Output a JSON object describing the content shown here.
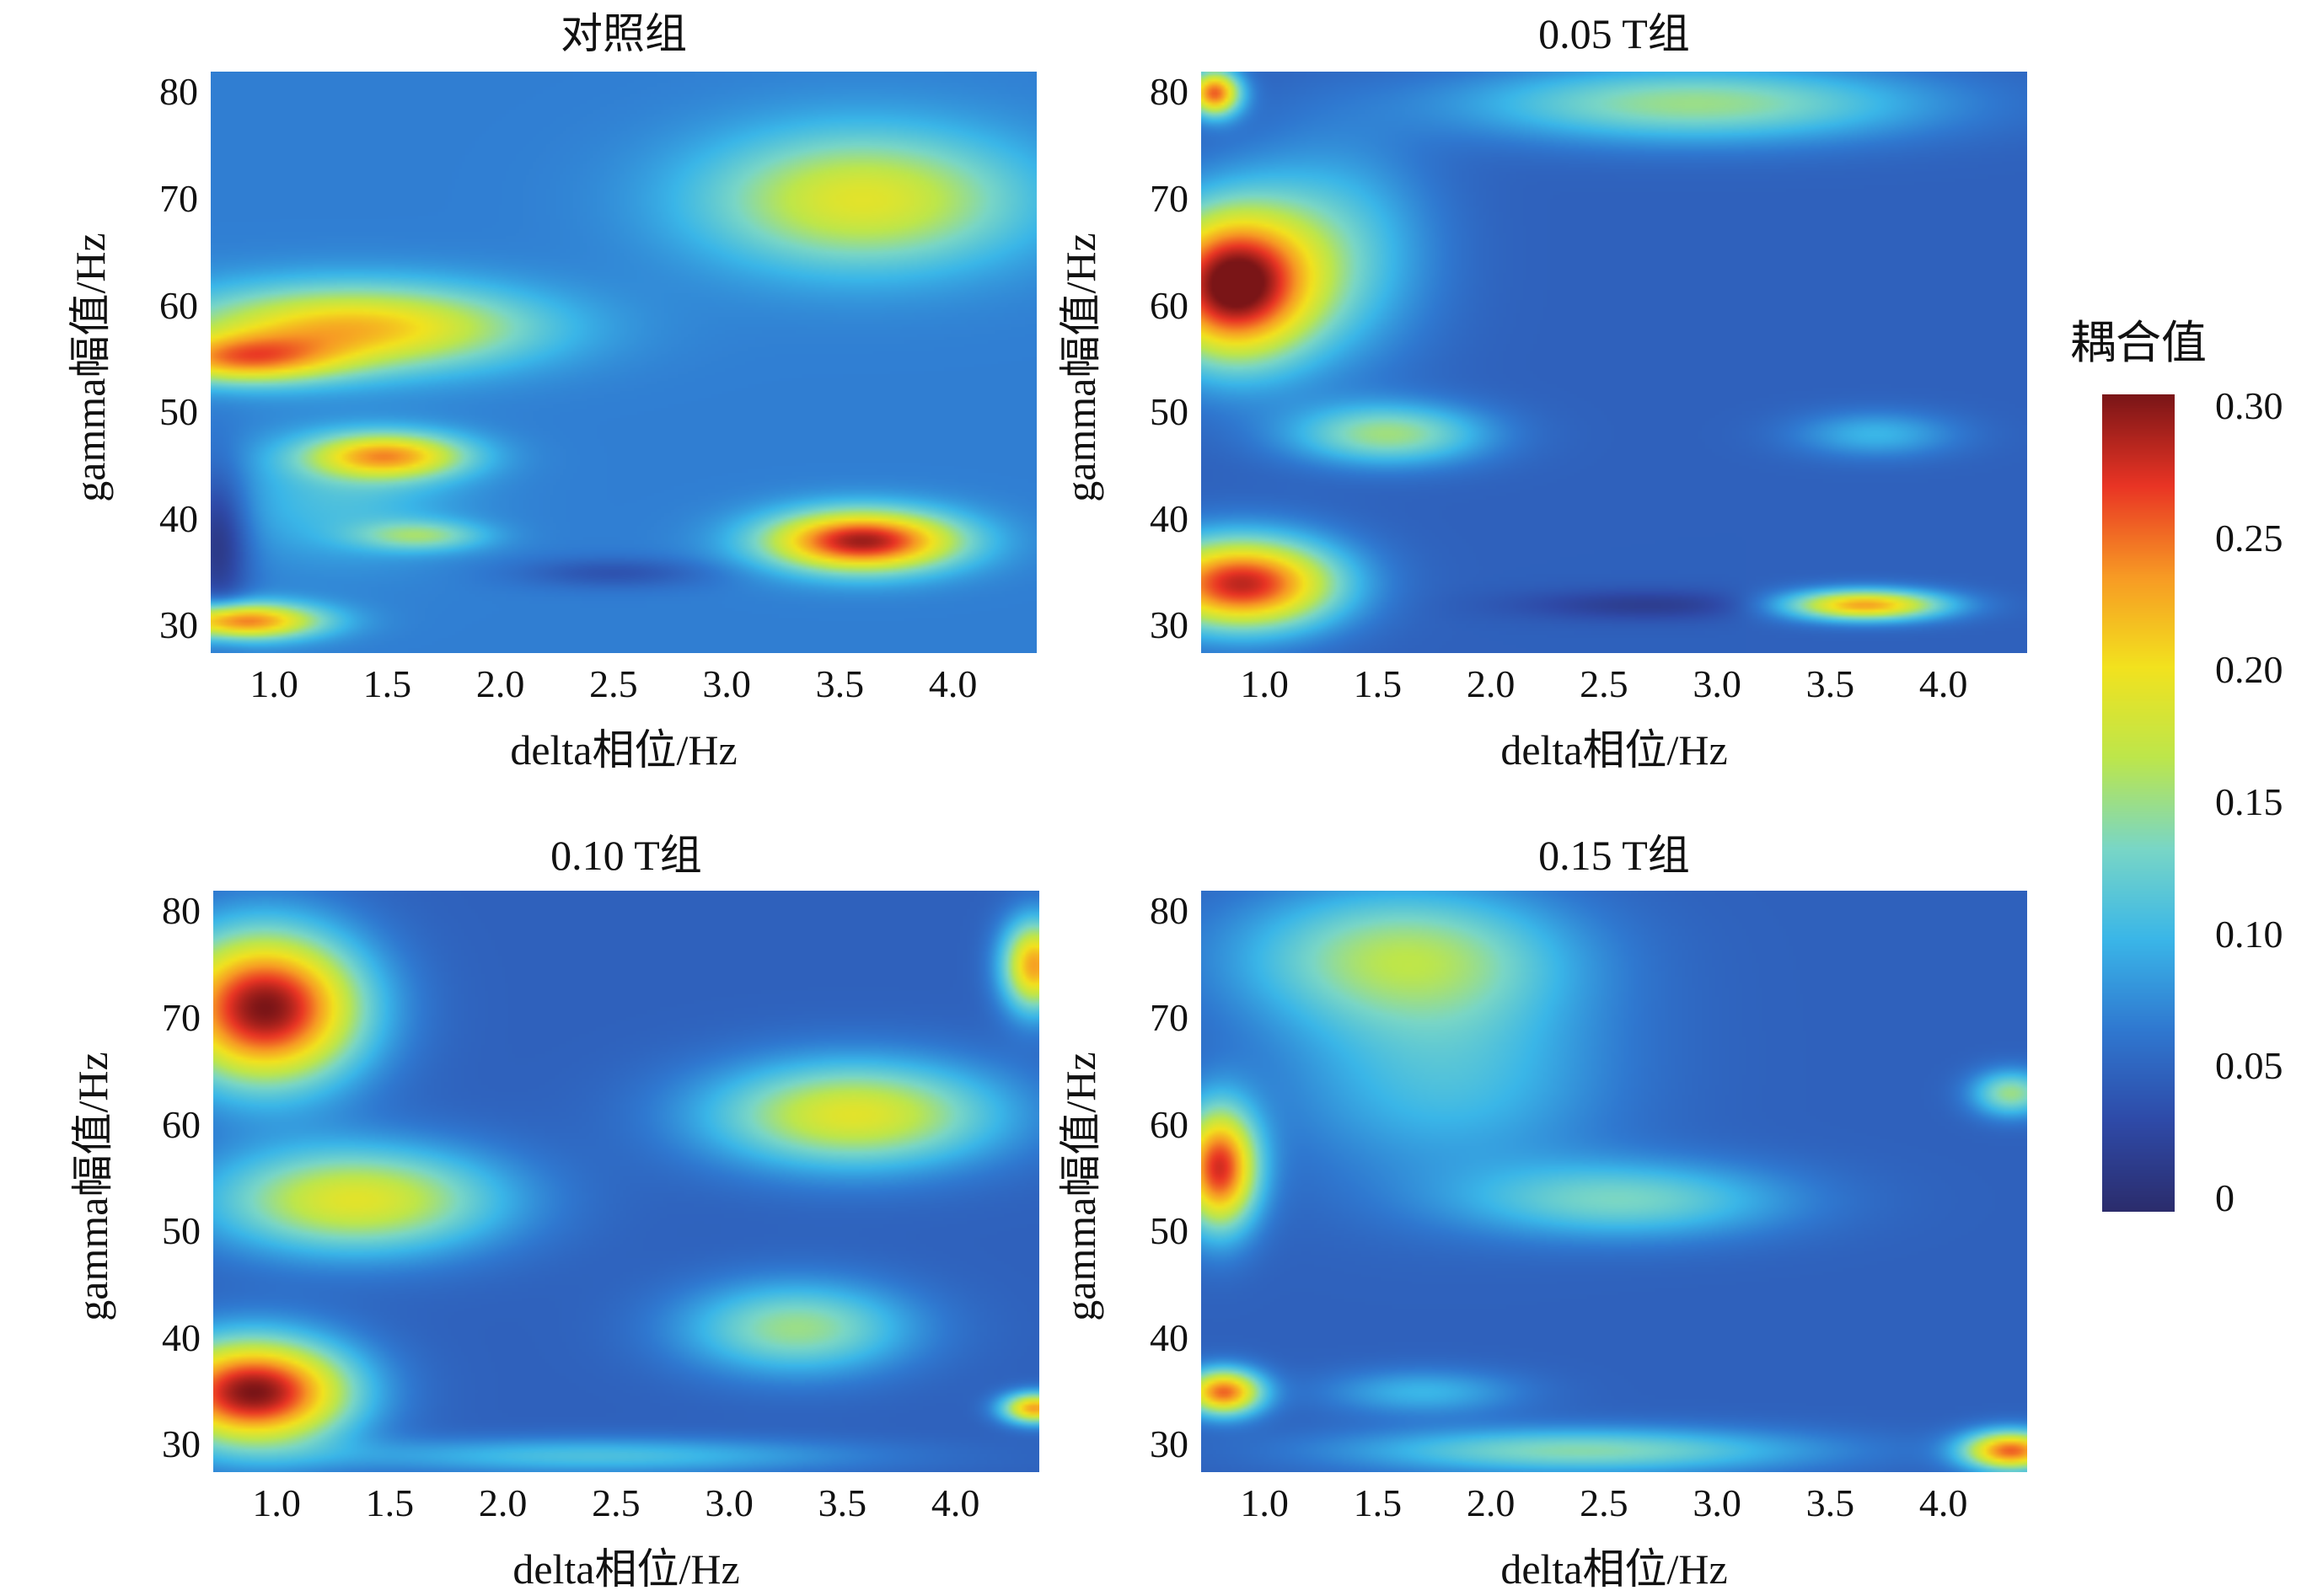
{
  "chart_data": [
    {
      "type": "heatmap",
      "title": "对照组",
      "xlabel": "delta相位/Hz",
      "ylabel": "gamma幅值/Hz",
      "xlim": [
        0.72,
        4.37
      ],
      "ylim": [
        27.5,
        82
      ],
      "xticks": [
        1.0,
        1.5,
        2.0,
        2.5,
        3.0,
        3.5,
        4.0
      ],
      "xtick_labels": [
        "1.0",
        "1.5",
        "2.0",
        "2.5",
        "3.0",
        "3.5",
        "4.0"
      ],
      "yticks": [
        30,
        40,
        50,
        60,
        70,
        80
      ],
      "ytick_labels": [
        "30",
        "40",
        "50",
        "60",
        "70",
        "80"
      ],
      "base_value": 0.07,
      "blobs": [
        {
          "x": 1.35,
          "y": 58,
          "sx": 0.55,
          "sy": 2.8,
          "v": 0.15
        },
        {
          "x": 0.85,
          "y": 55,
          "sx": 0.3,
          "sy": 1.6,
          "v": 0.13
        },
        {
          "x": 1.5,
          "y": 46,
          "sx": 0.25,
          "sy": 1.5,
          "v": 0.15
        },
        {
          "x": 1.65,
          "y": 38.5,
          "sx": 0.2,
          "sy": 1.0,
          "v": 0.07
        },
        {
          "x": 3.6,
          "y": 38,
          "sx": 0.3,
          "sy": 2.0,
          "v": 0.22
        },
        {
          "x": 3.6,
          "y": 70,
          "sx": 0.5,
          "sy": 4.5,
          "v": 0.12
        },
        {
          "x": 0.85,
          "y": 30.5,
          "sx": 0.25,
          "sy": 1.2,
          "v": 0.18
        },
        {
          "x": 1.3,
          "y": 42,
          "sx": 0.35,
          "sy": 4.0,
          "v": 0.04
        },
        {
          "x": 0.75,
          "y": 38,
          "sx": 0.1,
          "sy": 5.0,
          "v": -0.06
        },
        {
          "x": 2.5,
          "y": 35,
          "sx": 0.3,
          "sy": 1.0,
          "v": -0.03
        }
      ],
      "colorbar_ticks": []
    },
    {
      "type": "heatmap",
      "title": "0.05 T组",
      "xlabel": "delta相位/Hz",
      "ylabel": "gamma幅值/Hz",
      "xlim": [
        0.72,
        4.37
      ],
      "ylim": [
        27.5,
        82
      ],
      "xticks": [
        1.0,
        1.5,
        2.0,
        2.5,
        3.0,
        3.5,
        4.0
      ],
      "xtick_labels": [
        "1.0",
        "1.5",
        "2.0",
        "2.5",
        "3.0",
        "3.5",
        "4.0"
      ],
      "yticks": [
        30,
        40,
        50,
        60,
        70,
        80
      ],
      "ytick_labels": [
        "30",
        "40",
        "50",
        "60",
        "70",
        "80"
      ],
      "base_value": 0.05,
      "blobs": [
        {
          "x": 0.85,
          "y": 62,
          "sx": 0.25,
          "sy": 5.0,
          "v": 0.25
        },
        {
          "x": 0.9,
          "y": 34,
          "sx": 0.3,
          "sy": 3.0,
          "v": 0.23
        },
        {
          "x": 0.78,
          "y": 80,
          "sx": 0.08,
          "sy": 1.5,
          "v": 0.2
        },
        {
          "x": 1.55,
          "y": 48,
          "sx": 0.3,
          "sy": 2.0,
          "v": 0.1
        },
        {
          "x": 3.65,
          "y": 32,
          "sx": 0.25,
          "sy": 1.0,
          "v": 0.18
        },
        {
          "x": 2.9,
          "y": 79,
          "sx": 0.7,
          "sy": 2.5,
          "v": 0.1
        },
        {
          "x": 1.3,
          "y": 65,
          "sx": 0.3,
          "sy": 7.0,
          "v": 0.07
        },
        {
          "x": 3.7,
          "y": 48,
          "sx": 0.25,
          "sy": 1.5,
          "v": 0.05
        },
        {
          "x": 2.7,
          "y": 32,
          "sx": 0.4,
          "sy": 1.0,
          "v": -0.03
        }
      ],
      "colorbar_ticks": []
    },
    {
      "type": "heatmap",
      "title": "0.10 T组",
      "xlabel": "delta相位/Hz",
      "ylabel": "gamma幅值/Hz",
      "xlim": [
        0.72,
        4.37
      ],
      "ylim": [
        27.5,
        82
      ],
      "xticks": [
        1.0,
        1.5,
        2.0,
        2.5,
        3.0,
        3.5,
        4.0
      ],
      "xtick_labels": [
        "1.0",
        "1.5",
        "2.0",
        "2.5",
        "3.0",
        "3.5",
        "4.0"
      ],
      "yticks": [
        30,
        40,
        50,
        60,
        70,
        80
      ],
      "ytick_labels": [
        "30",
        "40",
        "50",
        "60",
        "70",
        "80"
      ],
      "base_value": 0.05,
      "blobs": [
        {
          "x": 0.95,
          "y": 71,
          "sx": 0.3,
          "sy": 5.0,
          "v": 0.25
        },
        {
          "x": 0.9,
          "y": 35,
          "sx": 0.3,
          "sy": 3.5,
          "v": 0.25
        },
        {
          "x": 1.35,
          "y": 53,
          "sx": 0.45,
          "sy": 3.5,
          "v": 0.14
        },
        {
          "x": 3.55,
          "y": 61,
          "sx": 0.45,
          "sy": 3.5,
          "v": 0.14
        },
        {
          "x": 3.3,
          "y": 41,
          "sx": 0.35,
          "sy": 3.0,
          "v": 0.1
        },
        {
          "x": 4.35,
          "y": 75,
          "sx": 0.1,
          "sy": 3.0,
          "v": 0.18
        },
        {
          "x": 4.35,
          "y": 33.5,
          "sx": 0.1,
          "sy": 1.0,
          "v": 0.18
        },
        {
          "x": 2.4,
          "y": 29,
          "sx": 0.8,
          "sy": 1.2,
          "v": 0.06
        }
      ],
      "colorbar_ticks": []
    },
    {
      "type": "heatmap",
      "title": "0.15 T组",
      "xlabel": "delta相位/Hz",
      "ylabel": "gamma幅值/Hz",
      "xlim": [
        0.72,
        4.37
      ],
      "ylim": [
        27.5,
        82
      ],
      "xticks": [
        1.0,
        1.5,
        2.0,
        2.5,
        3.0,
        3.5,
        4.0
      ],
      "xtick_labels": [
        "1.0",
        "1.5",
        "2.0",
        "2.5",
        "3.0",
        "3.5",
        "4.0"
      ],
      "yticks": [
        30,
        40,
        50,
        60,
        70,
        80
      ],
      "ytick_labels": [
        "30",
        "40",
        "50",
        "60",
        "70",
        "80"
      ],
      "base_value": 0.05,
      "blobs": [
        {
          "x": 0.8,
          "y": 56,
          "sx": 0.12,
          "sy": 4.0,
          "v": 0.22
        },
        {
          "x": 1.6,
          "y": 76,
          "sx": 0.5,
          "sy": 4.5,
          "v": 0.1
        },
        {
          "x": 1.8,
          "y": 65,
          "sx": 0.5,
          "sy": 7.0,
          "v": 0.06
        },
        {
          "x": 2.6,
          "y": 53,
          "sx": 0.5,
          "sy": 2.5,
          "v": 0.08
        },
        {
          "x": 0.82,
          "y": 35,
          "sx": 0.12,
          "sy": 1.5,
          "v": 0.2
        },
        {
          "x": 2.4,
          "y": 29.5,
          "sx": 0.7,
          "sy": 1.5,
          "v": 0.09
        },
        {
          "x": 4.3,
          "y": 29.5,
          "sx": 0.15,
          "sy": 1.3,
          "v": 0.2
        },
        {
          "x": 4.3,
          "y": 63,
          "sx": 0.12,
          "sy": 1.5,
          "v": 0.1
        },
        {
          "x": 1.7,
          "y": 35,
          "sx": 0.3,
          "sy": 1.5,
          "v": 0.05
        }
      ],
      "colorbar_ticks": []
    }
  ],
  "colorbar": {
    "title": "耦合值",
    "min": 0,
    "max": 0.3,
    "ticks": [
      0,
      0.05,
      0.1,
      0.15,
      0.2,
      0.25,
      0.3
    ],
    "tick_labels": [
      "0",
      "0.05",
      "0.10",
      "0.15",
      "0.20",
      "0.25",
      "0.30"
    ]
  },
  "colormap": [
    "#2b2c6c",
    "#2e4aa8",
    "#2f78d0",
    "#3ab6e8",
    "#79d6c6",
    "#bde64b",
    "#f2e21e",
    "#f79a24",
    "#e93424",
    "#7a1517"
  ]
}
